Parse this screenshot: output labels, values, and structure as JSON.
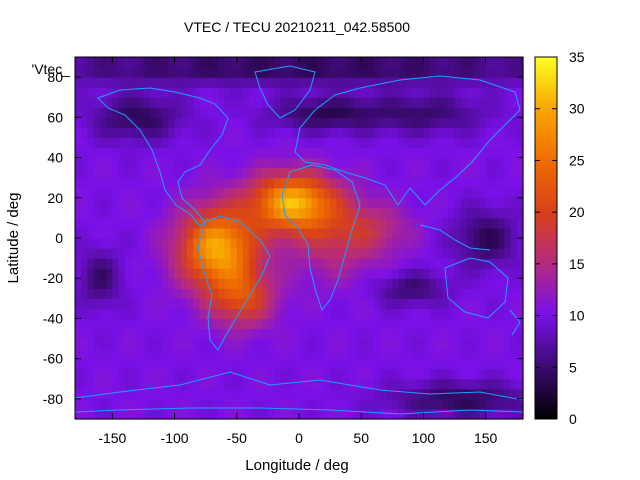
{
  "chart_data": {
    "type": "heatmap",
    "title": "VTEC / TECU 20210211_042.58500",
    "xlabel": "Longitude / deg",
    "ylabel": "Latitude / deg",
    "legend_label": "'Vtec_",
    "xlim": [
      -180,
      180
    ],
    "ylim": [
      -90,
      90
    ],
    "xticks": [
      -150,
      -100,
      -50,
      0,
      50,
      100,
      150
    ],
    "yticks": [
      -80,
      -60,
      -40,
      -20,
      0,
      20,
      40,
      60,
      80
    ],
    "colorbar": {
      "min": 0,
      "max": 35,
      "ticks": [
        0,
        5,
        10,
        15,
        20,
        25,
        30,
        35
      ]
    },
    "peaks": [
      {
        "lon": -65,
        "lat": -5,
        "value": 30,
        "sx": 22,
        "sy": 14
      },
      {
        "lon": -5,
        "lat": 18,
        "value": 30,
        "sx": 24,
        "sy": 10
      },
      {
        "lon": -45,
        "lat": -30,
        "value": 20,
        "sx": 18,
        "sy": 10
      },
      {
        "lon": 30,
        "lat": 0,
        "value": 16,
        "sx": 28,
        "sy": 14
      },
      {
        "lon": 60,
        "lat": 5,
        "value": 14,
        "sx": 22,
        "sy": 8
      }
    ],
    "background_value": 10,
    "lows": [
      {
        "lon": 0,
        "lat": 85,
        "value": 4,
        "sx": 180,
        "sy": 6
      },
      {
        "lon": -130,
        "lat": 60,
        "value": 4,
        "sx": 25,
        "sy": 8
      },
      {
        "lon": 20,
        "lat": 62,
        "value": 4,
        "sx": 30,
        "sy": 6
      },
      {
        "lon": 100,
        "lat": 62,
        "value": 5,
        "sx": 35,
        "sy": 7
      },
      {
        "lon": 150,
        "lat": 0,
        "value": 4,
        "sx": 18,
        "sy": 10
      },
      {
        "lon": 90,
        "lat": -25,
        "value": 5,
        "sx": 20,
        "sy": 6
      },
      {
        "lon": 130,
        "lat": -80,
        "value": 4,
        "sx": 40,
        "sy": 6
      },
      {
        "lon": -160,
        "lat": -20,
        "value": 5,
        "sx": 12,
        "sy": 10
      }
    ]
  }
}
